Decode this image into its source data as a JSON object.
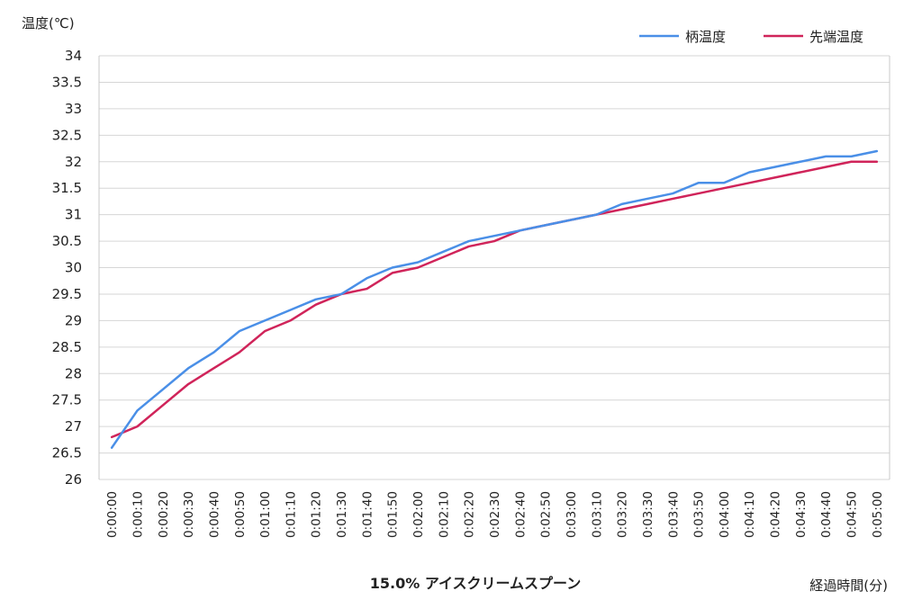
{
  "chart_data": {
    "type": "line",
    "title": "15.0% アイスクリームスプーン",
    "ylabel": "温度(℃)",
    "xlabel": "経過時間(分)",
    "ylim": [
      26,
      34
    ],
    "yticks": [
      "26",
      "26.5",
      "27",
      "27.5",
      "28",
      "28.5",
      "29",
      "29.5",
      "30",
      "30.5",
      "31",
      "31.5",
      "32",
      "32.5",
      "33",
      "33.5",
      "34"
    ],
    "grid": true,
    "legend_position": "top-right",
    "categories": [
      "0:00:00",
      "0:00:10",
      "0:00:20",
      "0:00:30",
      "0:00:40",
      "0:00:50",
      "0:01:00",
      "0:01:10",
      "0:01:20",
      "0:01:30",
      "0:01:40",
      "0:01:50",
      "0:02:00",
      "0:02:10",
      "0:02:20",
      "0:02:30",
      "0:02:40",
      "0:02:50",
      "0:03:00",
      "0:03:10",
      "0:03:20",
      "0:03:30",
      "0:03:40",
      "0:03:50",
      "0:04:00",
      "0:04:10",
      "0:04:20",
      "0:04:30",
      "0:04:40",
      "0:04:50",
      "0:05:00"
    ],
    "series": [
      {
        "name": "柄温度",
        "color": "#4a8fe7",
        "values": [
          26.6,
          27.3,
          27.7,
          28.1,
          28.4,
          28.8,
          29.0,
          29.2,
          29.4,
          29.5,
          29.8,
          30.0,
          30.1,
          30.3,
          30.5,
          30.6,
          30.7,
          30.8,
          30.9,
          31.0,
          31.2,
          31.3,
          31.4,
          31.6,
          31.6,
          31.8,
          31.9,
          32.0,
          32.1,
          32.1,
          32.2
        ]
      },
      {
        "name": "先端温度",
        "color": "#d0245a",
        "values": [
          26.8,
          27.0,
          27.4,
          27.8,
          28.1,
          28.4,
          28.8,
          29.0,
          29.3,
          29.5,
          29.6,
          29.9,
          30.0,
          30.2,
          30.4,
          30.5,
          30.7,
          30.8,
          30.9,
          31.0,
          31.1,
          31.2,
          31.3,
          31.4,
          31.5,
          31.6,
          31.7,
          31.8,
          31.9,
          32.0,
          32.0
        ]
      }
    ]
  }
}
